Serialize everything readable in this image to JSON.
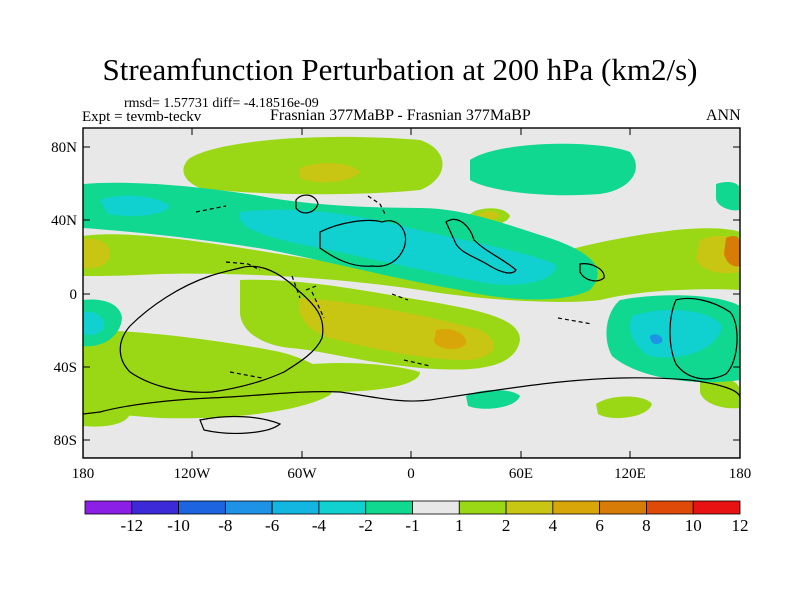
{
  "title": "Streamfunction Perturbation at 200 hPa (km2/s)",
  "stats": "rmsd= 1.57731 diff= -4.18516e-09",
  "expt": "Expt = tevmb-teckv",
  "subtitle": "Frasnian 377MaBP - Frasnian 377MaBP",
  "season": "ANN",
  "axes": {
    "lat_labels": [
      "80N",
      "40N",
      "0",
      "40S",
      "80S"
    ],
    "lon_labels": [
      "180",
      "120W",
      "60W",
      "0",
      "60E",
      "120E",
      "180"
    ]
  },
  "colorbar": {
    "labels": [
      "-12",
      "-10",
      "-8",
      "-6",
      "-4",
      "-2",
      "-1",
      "1",
      "2",
      "4",
      "6",
      "8",
      "10",
      "12"
    ],
    "colors": [
      "#8c1fe6",
      "#3c2ad9",
      "#1c64e0",
      "#1e93e6",
      "#12b6e0",
      "#10d0d0",
      "#10d890",
      "#e8e8e8",
      "#9ad816",
      "#c8c612",
      "#d8a608",
      "#d87c08",
      "#e04a08",
      "#e81212"
    ]
  },
  "colors": {
    "background_field": "#e8e8e8",
    "coastline": "#000000"
  }
}
